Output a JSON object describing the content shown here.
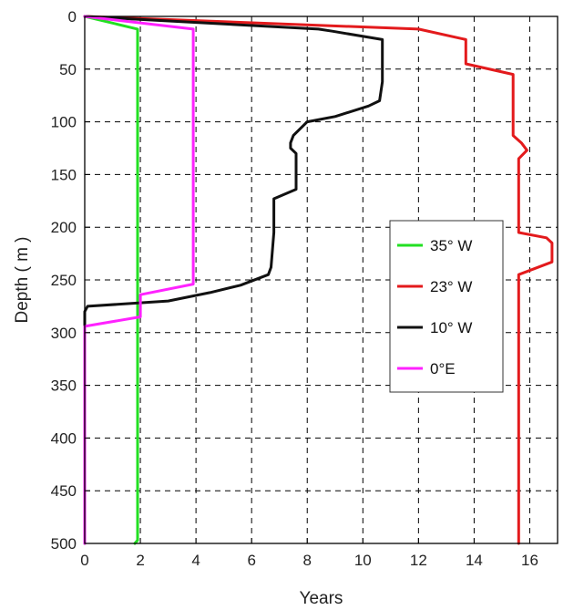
{
  "chart_data": {
    "type": "line",
    "xlabel": "Years",
    "ylabel": "Depth ( m )",
    "xlim": [
      0,
      17
    ],
    "ylim": [
      0,
      500
    ],
    "y_inverted": true,
    "x_ticks": [
      "0",
      "2",
      "4",
      "6",
      "8",
      "10",
      "12",
      "14",
      "16"
    ],
    "y_ticks": [
      "0",
      "50",
      "100",
      "150",
      "200",
      "250",
      "300",
      "350",
      "400",
      "450",
      "500"
    ],
    "grid": true,
    "legend_position": "right-center",
    "series": [
      {
        "name": "35° W",
        "color": "#22e022",
        "points": [
          [
            0,
            0
          ],
          [
            1.9,
            12
          ],
          [
            1.9,
            497
          ],
          [
            1.8,
            500
          ]
        ]
      },
      {
        "name": "23° W",
        "color": "#e31a1c",
        "points": [
          [
            0,
            0
          ],
          [
            12.0,
            12
          ],
          [
            13.7,
            22
          ],
          [
            13.7,
            45
          ],
          [
            15.4,
            55
          ],
          [
            15.4,
            113
          ],
          [
            15.7,
            120
          ],
          [
            15.9,
            127
          ],
          [
            15.6,
            135
          ],
          [
            15.6,
            205
          ],
          [
            16.6,
            210
          ],
          [
            16.8,
            215
          ],
          [
            16.8,
            233
          ],
          [
            15.6,
            245
          ],
          [
            15.6,
            500
          ]
        ]
      },
      {
        "name": "10° W",
        "color": "#111111",
        "points": [
          [
            0,
            0
          ],
          [
            8.4,
            12
          ],
          [
            8.9,
            14
          ],
          [
            10.7,
            22
          ],
          [
            10.7,
            40
          ],
          [
            10.7,
            62
          ],
          [
            10.6,
            80
          ],
          [
            10.2,
            85
          ],
          [
            9.0,
            95
          ],
          [
            8.0,
            100
          ],
          [
            7.5,
            113
          ],
          [
            7.4,
            120
          ],
          [
            7.4,
            125
          ],
          [
            7.6,
            130
          ],
          [
            7.6,
            140
          ],
          [
            7.6,
            164
          ],
          [
            6.8,
            173
          ],
          [
            6.8,
            205
          ],
          [
            6.7,
            238
          ],
          [
            6.6,
            245
          ],
          [
            5.6,
            255
          ],
          [
            4.5,
            262
          ],
          [
            3.0,
            270
          ],
          [
            0.1,
            275
          ],
          [
            0,
            280
          ],
          [
            0,
            500
          ]
        ]
      },
      {
        "name": "0°E",
        "color": "#ff22ff",
        "points": [
          [
            0,
            0
          ],
          [
            3.9,
            12
          ],
          [
            3.9,
            254
          ],
          [
            2.0,
            264
          ],
          [
            2.0,
            285
          ],
          [
            0,
            294
          ],
          [
            0,
            500
          ]
        ]
      }
    ]
  }
}
